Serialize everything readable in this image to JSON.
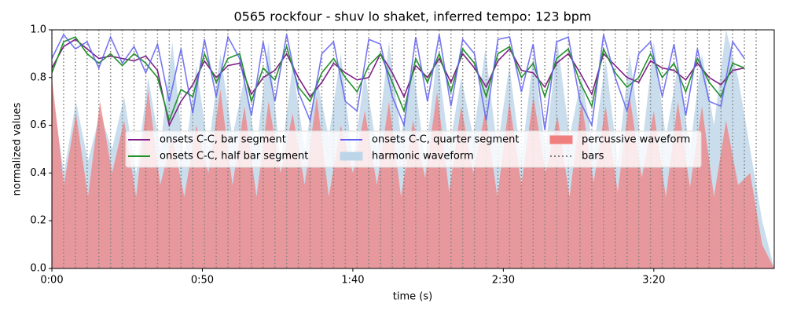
{
  "chart_data": {
    "type": "line",
    "title": "0565 rockfour - shuv lo shaket, inferred tempo: 123 bpm",
    "xlabel": "time (s)",
    "ylabel": "normalized values",
    "xlim": [
      0,
      240
    ],
    "xticks": [
      {
        "value": 0,
        "label": "0:00"
      },
      {
        "value": 50,
        "label": "0:50"
      },
      {
        "value": 100,
        "label": "1:40"
      },
      {
        "value": 150,
        "label": "2:30"
      },
      {
        "value": 200,
        "label": "3:20"
      }
    ],
    "ylim": [
      0,
      1
    ],
    "yticks": [
      {
        "value": 0,
        "label": "0.0"
      },
      {
        "value": 0.2,
        "label": "0.2"
      },
      {
        "value": 0.4,
        "label": "0.4"
      },
      {
        "value": 0.6,
        "label": "0.6"
      },
      {
        "value": 0.8,
        "label": "0.8"
      },
      {
        "value": 1,
        "label": "1.0"
      }
    ],
    "legend": "upper center",
    "x": [
      0,
      3.9,
      7.8,
      11.7,
      15.6,
      19.5,
      23.4,
      27.3,
      31.2,
      35.1,
      39,
      42.9,
      46.8,
      50.7,
      54.6,
      58.5,
      62.4,
      66.3,
      70.2,
      74.1,
      78,
      81.9,
      85.8,
      89.7,
      93.6,
      97.5,
      101.4,
      105.3,
      109.2,
      113.1,
      117,
      120.9,
      124.8,
      128.7,
      132.6,
      136.5,
      140.4,
      144.3,
      148.2,
      152.1,
      156,
      159.9,
      163.8,
      167.7,
      171.6,
      175.5,
      179.4,
      183.3,
      187.2,
      191.1,
      195,
      198.9,
      202.8,
      206.7,
      210.6,
      214.5,
      218.4,
      222.3,
      226.2,
      230.1,
      234
    ],
    "series": [
      {
        "name": "onsets C-C, bar segment",
        "color": "#7f1f86",
        "values": [
          0.84,
          0.93,
          0.96,
          0.92,
          0.88,
          0.89,
          0.88,
          0.87,
          0.89,
          0.83,
          0.6,
          0.7,
          0.77,
          0.87,
          0.8,
          0.85,
          0.86,
          0.73,
          0.8,
          0.83,
          0.9,
          0.8,
          0.72,
          0.78,
          0.86,
          0.82,
          0.79,
          0.8,
          0.9,
          0.82,
          0.72,
          0.85,
          0.8,
          0.88,
          0.78,
          0.9,
          0.84,
          0.76,
          0.87,
          0.92,
          0.83,
          0.82,
          0.76,
          0.86,
          0.9,
          0.82,
          0.73,
          0.9,
          0.85,
          0.8,
          0.78,
          0.87,
          0.84,
          0.83,
          0.79,
          0.86,
          0.8,
          0.77,
          0.83,
          0.84,
          null
        ]
      },
      {
        "name": "onsets C-C, half bar segment",
        "color": "#22912b",
        "values": [
          0.82,
          0.95,
          0.97,
          0.9,
          0.86,
          0.9,
          0.85,
          0.9,
          0.86,
          0.8,
          0.62,
          0.75,
          0.72,
          0.9,
          0.78,
          0.88,
          0.9,
          0.7,
          0.84,
          0.79,
          0.93,
          0.76,
          0.7,
          0.82,
          0.88,
          0.8,
          0.74,
          0.85,
          0.9,
          0.78,
          0.66,
          0.88,
          0.78,
          0.9,
          0.74,
          0.92,
          0.86,
          0.72,
          0.9,
          0.93,
          0.8,
          0.86,
          0.72,
          0.88,
          0.92,
          0.78,
          0.68,
          0.92,
          0.82,
          0.76,
          0.8,
          0.9,
          0.8,
          0.86,
          0.74,
          0.88,
          0.78,
          0.72,
          0.86,
          0.84,
          null
        ]
      },
      {
        "name": "onsets C-C, quarter segment",
        "color": "#5f5ff2",
        "values": [
          0.88,
          0.98,
          0.92,
          0.95,
          0.84,
          0.97,
          0.86,
          0.93,
          0.82,
          0.94,
          0.7,
          0.92,
          0.65,
          0.96,
          0.72,
          0.97,
          0.88,
          0.64,
          0.95,
          0.7,
          0.98,
          0.74,
          0.62,
          0.9,
          0.95,
          0.7,
          0.66,
          0.96,
          0.94,
          0.72,
          0.6,
          0.97,
          0.7,
          0.98,
          0.68,
          0.96,
          0.9,
          0.62,
          0.96,
          0.97,
          0.74,
          0.94,
          0.58,
          0.95,
          0.97,
          0.7,
          0.6,
          0.98,
          0.8,
          0.66,
          0.9,
          0.95,
          0.72,
          0.94,
          0.64,
          0.92,
          0.7,
          0.68,
          0.95,
          0.88,
          null
        ]
      }
    ],
    "areas": [
      {
        "name": "harmonic waveform",
        "color": "#bcd5e8",
        "x": [
          0,
          4,
          8,
          12,
          16,
          20,
          24,
          28,
          32,
          36,
          40,
          44,
          48,
          52,
          56,
          60,
          64,
          68,
          72,
          76,
          80,
          84,
          88,
          92,
          96,
          100,
          104,
          108,
          112,
          116,
          120,
          124,
          128,
          132,
          136,
          140,
          144,
          148,
          152,
          156,
          160,
          164,
          168,
          172,
          176,
          180,
          184,
          188,
          192,
          196,
          200,
          204,
          208,
          212,
          216,
          220,
          224,
          228,
          232,
          236,
          240
        ],
        "values": [
          0.75,
          0.4,
          0.7,
          0.45,
          0.65,
          0.5,
          0.72,
          0.4,
          0.8,
          0.5,
          0.95,
          0.45,
          0.85,
          0.5,
          0.9,
          0.55,
          0.8,
          0.5,
          0.95,
          0.45,
          0.85,
          0.5,
          0.8,
          0.55,
          0.9,
          0.45,
          0.82,
          0.5,
          0.95,
          0.55,
          0.85,
          0.45,
          0.9,
          0.5,
          0.8,
          0.55,
          0.92,
          0.5,
          0.85,
          0.45,
          0.9,
          0.5,
          0.95,
          0.55,
          0.8,
          0.5,
          0.88,
          0.45,
          0.9,
          0.5,
          0.95,
          0.55,
          0.85,
          0.5,
          0.9,
          0.6,
          1.0,
          0.8,
          0.5,
          0.2,
          0
        ]
      },
      {
        "name": "percussive waveform",
        "color": "#f08080",
        "x": [
          0,
          4,
          8,
          12,
          16,
          20,
          24,
          28,
          32,
          36,
          40,
          44,
          48,
          52,
          56,
          60,
          64,
          68,
          72,
          76,
          80,
          84,
          88,
          92,
          96,
          100,
          104,
          108,
          112,
          116,
          120,
          124,
          128,
          132,
          136,
          140,
          144,
          148,
          152,
          156,
          160,
          164,
          168,
          172,
          176,
          180,
          184,
          188,
          192,
          196,
          200,
          204,
          208,
          212,
          216,
          220,
          224,
          228,
          232,
          236,
          240
        ],
        "values": [
          0.8,
          0.35,
          0.65,
          0.3,
          0.7,
          0.4,
          0.62,
          0.3,
          0.75,
          0.35,
          0.55,
          0.3,
          0.6,
          0.4,
          0.75,
          0.35,
          0.68,
          0.3,
          0.7,
          0.4,
          0.65,
          0.35,
          0.72,
          0.3,
          0.6,
          0.4,
          0.66,
          0.35,
          0.7,
          0.3,
          0.62,
          0.38,
          0.74,
          0.32,
          0.68,
          0.4,
          0.66,
          0.3,
          0.7,
          0.35,
          0.72,
          0.4,
          0.64,
          0.3,
          0.7,
          0.36,
          0.68,
          0.32,
          0.72,
          0.38,
          0.66,
          0.3,
          0.7,
          0.34,
          0.68,
          0.3,
          0.62,
          0.35,
          0.4,
          0.1,
          0
        ]
      }
    ],
    "bars": {
      "name": "bars",
      "color": "#808080"
    }
  }
}
